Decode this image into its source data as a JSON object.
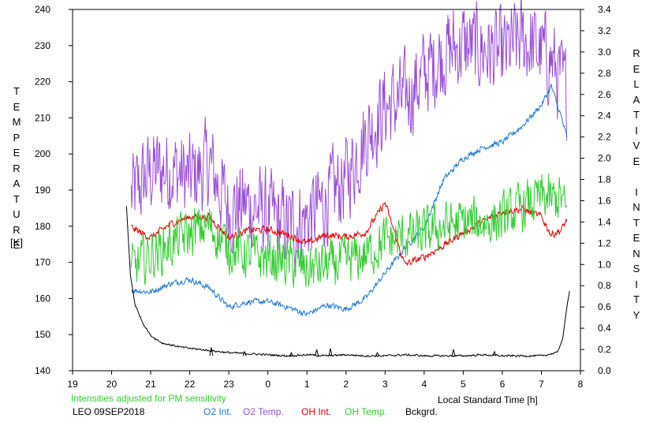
{
  "chart_data": {
    "type": "line",
    "xlabel": "Local Standard Time [h]",
    "ylabel_left": "TEMPERATURE",
    "ylabel_left_unit": "[K]",
    "ylabel_right": "RELATIVE INTENSITY",
    "xlim": [
      19,
      32
    ],
    "ylim_left": [
      140,
      240
    ],
    "ylim_right": [
      0.0,
      3.4
    ],
    "x_ticks": [
      19,
      20,
      21,
      22,
      23,
      24,
      25,
      26,
      27,
      28,
      29,
      30,
      31,
      32
    ],
    "x_tick_labels": [
      "19",
      "20",
      "21",
      "22",
      "23",
      "0",
      "1",
      "2",
      "3",
      "4",
      "5",
      "6",
      "7",
      "8"
    ],
    "y_left_ticks": [
      140,
      150,
      160,
      170,
      180,
      190,
      200,
      210,
      220,
      230,
      240
    ],
    "y_right_ticks": [
      "0.0",
      "0.2",
      "0.4",
      "0.6",
      "0.8",
      "1.0",
      "1.2",
      "1.4",
      "1.6",
      "1.8",
      "2.0",
      "2.2",
      "2.4",
      "2.6",
      "2.8",
      "3.0",
      "3.2",
      "3.4"
    ],
    "grid": false,
    "series": [
      {
        "name": "O2 Temp.",
        "axis": "left",
        "color": "#9b4fd6",
        "noise": 11,
        "x": [
          20.5,
          21,
          21.5,
          22,
          22.5,
          23,
          23.5,
          24,
          24.5,
          25,
          25.5,
          26,
          26.5,
          27,
          27.5,
          28,
          28.5,
          29,
          29.5,
          30,
          30.5,
          31,
          31.25,
          31.5,
          31.65
        ],
        "y": [
          188,
          195,
          196,
          193,
          197,
          185,
          186,
          183,
          180,
          182,
          187,
          193,
          205,
          213,
          215,
          222,
          228,
          230,
          229,
          227,
          232,
          228,
          226,
          220,
          217
        ]
      },
      {
        "name": "O2 Int.",
        "axis": "right",
        "color": "#1f78d1",
        "noise": 0.025,
        "x": [
          20.5,
          21,
          21.5,
          22,
          22.5,
          23,
          23.5,
          24,
          24.5,
          25,
          25.5,
          26,
          26.5,
          27,
          27.5,
          28,
          28.5,
          29,
          29.5,
          30,
          30.5,
          31,
          31.25,
          31.5,
          31.65
        ],
        "y": [
          0.76,
          0.74,
          0.82,
          0.86,
          0.78,
          0.6,
          0.65,
          0.65,
          0.6,
          0.53,
          0.62,
          0.58,
          0.68,
          0.92,
          1.15,
          1.35,
          1.8,
          2.0,
          2.1,
          2.15,
          2.3,
          2.5,
          2.68,
          2.4,
          2.2
        ]
      },
      {
        "name": "OH Int.",
        "axis": "right",
        "color": "#e00000",
        "noise": 0.03,
        "x": [
          20.5,
          21,
          21.5,
          22,
          22.5,
          23,
          23.5,
          24,
          24.5,
          25,
          25.5,
          26,
          26.5,
          27,
          27.5,
          28,
          28.5,
          29,
          29.5,
          30,
          30.5,
          31,
          31.25,
          31.5,
          31.65
        ],
        "y": [
          1.35,
          1.25,
          1.38,
          1.45,
          1.45,
          1.25,
          1.32,
          1.33,
          1.28,
          1.2,
          1.28,
          1.26,
          1.3,
          1.58,
          1.0,
          1.07,
          1.18,
          1.3,
          1.4,
          1.5,
          1.52,
          1.45,
          1.28,
          1.32,
          1.42
        ]
      },
      {
        "name": "OH Temp.",
        "axis": "left",
        "color": "#33cc33",
        "noise": 6,
        "x": [
          20.5,
          21,
          21.5,
          22,
          22.5,
          23,
          23.5,
          24,
          24.5,
          25,
          25.5,
          26,
          26.5,
          27,
          27.5,
          28,
          28.5,
          29,
          29.5,
          30,
          30.5,
          31,
          31.25,
          31.5,
          31.65
        ],
        "y": [
          168,
          172,
          175,
          178,
          180,
          174,
          172,
          171,
          170,
          168,
          169,
          170,
          172,
          176,
          177,
          178,
          180,
          181,
          181,
          182,
          185,
          188,
          187,
          188,
          183
        ]
      },
      {
        "name": "Bckgrd.",
        "axis": "right",
        "color": "#000000",
        "noise": 0.008,
        "x": [
          20.38,
          20.48,
          20.6,
          20.8,
          21,
          21.3,
          21.8,
          22.5,
          23,
          23.5,
          24,
          24.5,
          25,
          25.5,
          26,
          26.5,
          27,
          27.5,
          28,
          28.5,
          29,
          29.5,
          30,
          30.5,
          31,
          31.4,
          31.55,
          31.65,
          31.72
        ],
        "y": [
          1.55,
          0.9,
          0.62,
          0.45,
          0.33,
          0.26,
          0.22,
          0.19,
          0.17,
          0.16,
          0.15,
          0.14,
          0.15,
          0.14,
          0.15,
          0.14,
          0.14,
          0.15,
          0.14,
          0.14,
          0.14,
          0.15,
          0.14,
          0.14,
          0.14,
          0.17,
          0.3,
          0.6,
          0.75
        ]
      }
    ],
    "spikes": [
      {
        "series": "Bckgrd.",
        "x": [
          22.55,
          23.4,
          24.6,
          25.25,
          25.6,
          26.8,
          28.75,
          29.8
        ],
        "y": [
          0.22,
          0.18,
          0.17,
          0.2,
          0.21,
          0.17,
          0.2,
          0.18
        ]
      }
    ]
  },
  "footer": {
    "note": "Intensities adjusted for PM sensitivity",
    "station": "LEO 09SEP2018",
    "legend": [
      {
        "label": "O2 Int.",
        "color": "#1f78d1"
      },
      {
        "label": "O2 Temp.",
        "color": "#9b4fd6"
      },
      {
        "label": "OH Int.",
        "color": "#e00000"
      },
      {
        "label": "OH Temp.",
        "color": "#33cc33"
      },
      {
        "label": "Bckgrd.",
        "color": "#000000"
      }
    ]
  }
}
